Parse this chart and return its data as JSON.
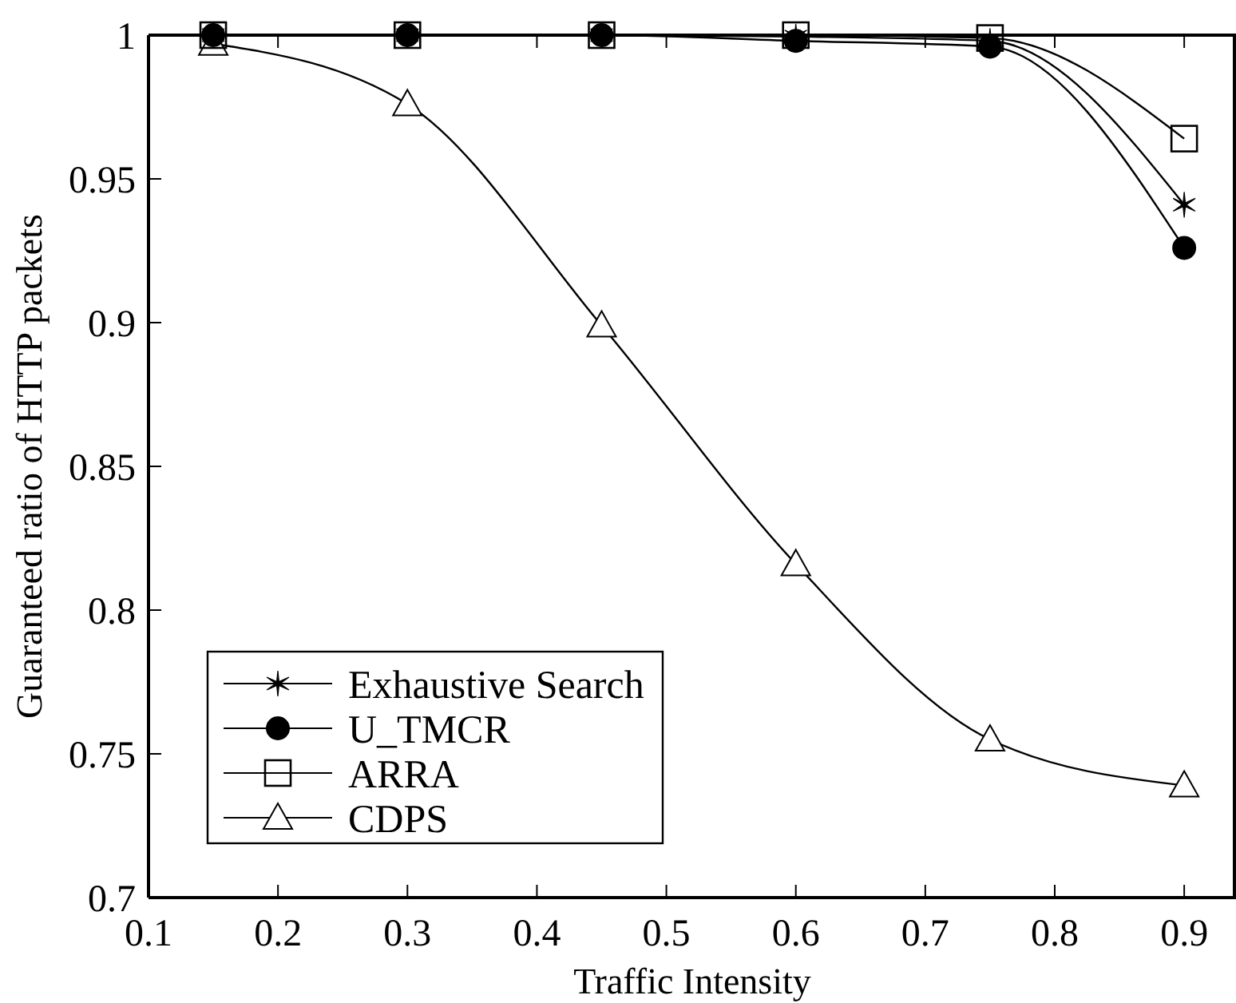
{
  "chart_data": {
    "type": "line",
    "xlabel": "Traffic Intensity",
    "ylabel": "Guaranteed ratio of HTTP packets",
    "x": [
      0.15,
      0.3,
      0.45,
      0.6,
      0.75,
      0.9
    ],
    "xlim": [
      0.1,
      0.94
    ],
    "xticks": [
      0.1,
      0.2,
      0.3,
      0.4,
      0.5,
      0.6,
      0.7,
      0.8,
      0.9
    ],
    "ylim": [
      0.7,
      1
    ],
    "yticks": [
      0.7,
      0.75,
      0.8,
      0.85,
      0.9,
      0.95,
      1
    ],
    "grid": false,
    "legend": "bottom left",
    "line_style": "solid",
    "series": [
      {
        "name": "Exhaustive Search",
        "color": "#000000",
        "marker": "cross",
        "values": [
          1,
          1,
          1,
          0.9995,
          0.998,
          0.941
        ]
      },
      {
        "name": "U_TMCR",
        "color": "#000000",
        "marker": "circle",
        "values": [
          1,
          1,
          1,
          0.998,
          0.996,
          0.926
        ]
      },
      {
        "name": "ARRA",
        "color": "#000000",
        "marker": "square",
        "values": [
          1,
          1,
          1,
          1,
          0.999,
          0.964
        ]
      },
      {
        "name": "CDPS",
        "color": "#000000",
        "marker": "triangle",
        "values": [
          0.997,
          0.976,
          0.899,
          0.816,
          0.755,
          0.739
        ]
      }
    ]
  }
}
